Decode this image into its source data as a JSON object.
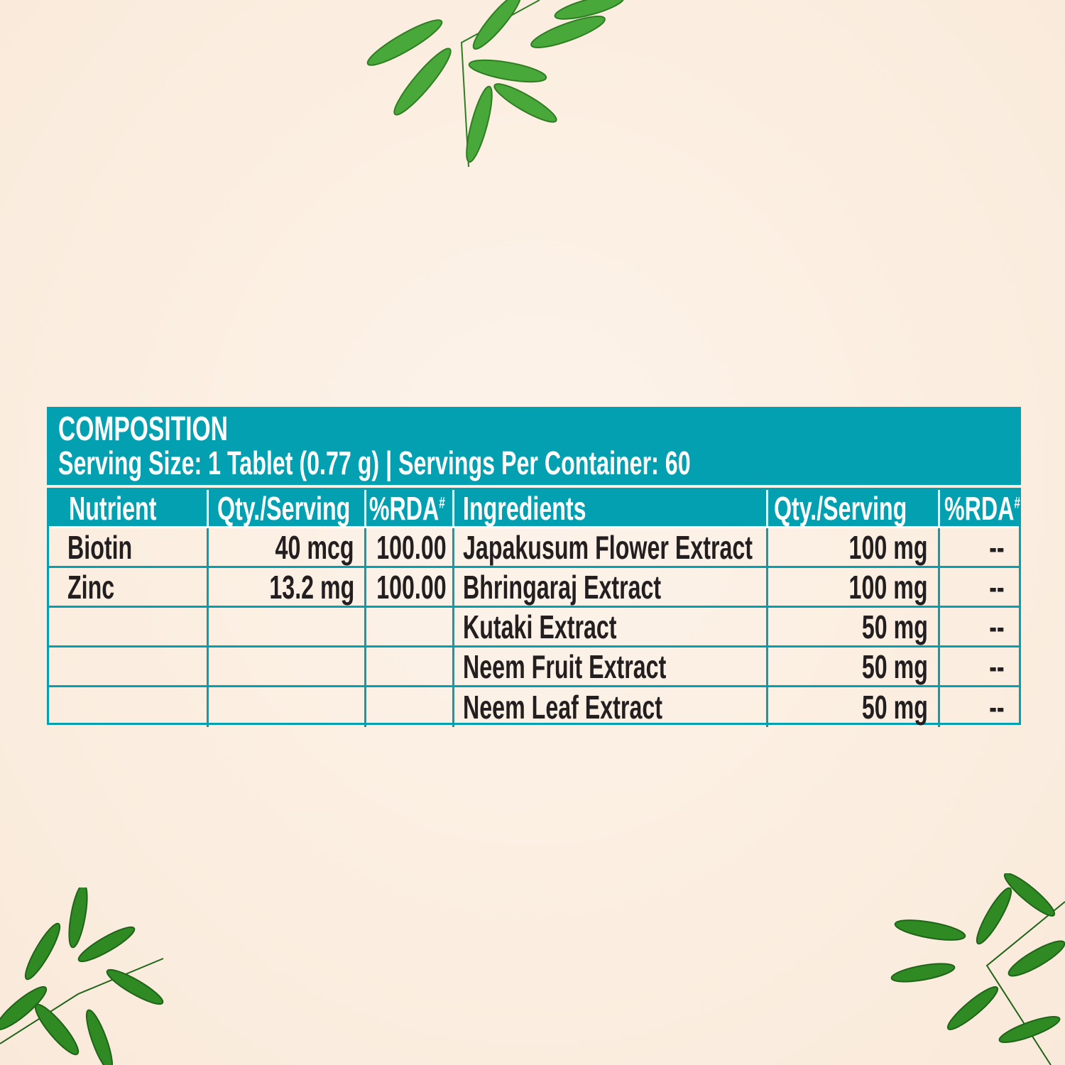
{
  "composition": {
    "title": "COMPOSITION",
    "serving_line": "Serving Size: 1 Tablet (0.77 g) | Servings Per Container: 60"
  },
  "headers": {
    "nutrient": "Nutrient",
    "qty1": "Qty./Serving",
    "rda1": "%RDA",
    "rda_mark": "#",
    "ingredients": "Ingredients",
    "qty2": "Qty./Serving",
    "rda2": "%RDA"
  },
  "rows": [
    {
      "nutrient": "Biotin",
      "qty": "40 mcg",
      "rda": "100.00",
      "ingredient": "Japakusum Flower Extract",
      "iqty": "100 mg",
      "irda": "--"
    },
    {
      "nutrient": "Zinc",
      "qty": "13.2 mg",
      "rda": "100.00",
      "ingredient": "Bhringaraj Extract",
      "iqty": "100 mg",
      "irda": "--"
    },
    {
      "nutrient": "",
      "qty": "",
      "rda": "",
      "ingredient": "Kutaki Extract",
      "iqty": "50 mg",
      "irda": "--"
    },
    {
      "nutrient": "",
      "qty": "",
      "rda": "",
      "ingredient": "Neem Fruit Extract",
      "iqty": "50 mg",
      "irda": "--"
    },
    {
      "nutrient": "",
      "qty": "",
      "rda": "",
      "ingredient": "Neem Leaf Extract",
      "iqty": "50 mg",
      "irda": "--"
    }
  ],
  "colors": {
    "accent": "#02a0b1",
    "background": "#fbeee0",
    "text": "#231f20",
    "leaf": "#3f9a2e"
  },
  "icons": [
    "neem-leaves-top",
    "neem-leaves-bottom-left",
    "neem-leaves-bottom-right"
  ]
}
